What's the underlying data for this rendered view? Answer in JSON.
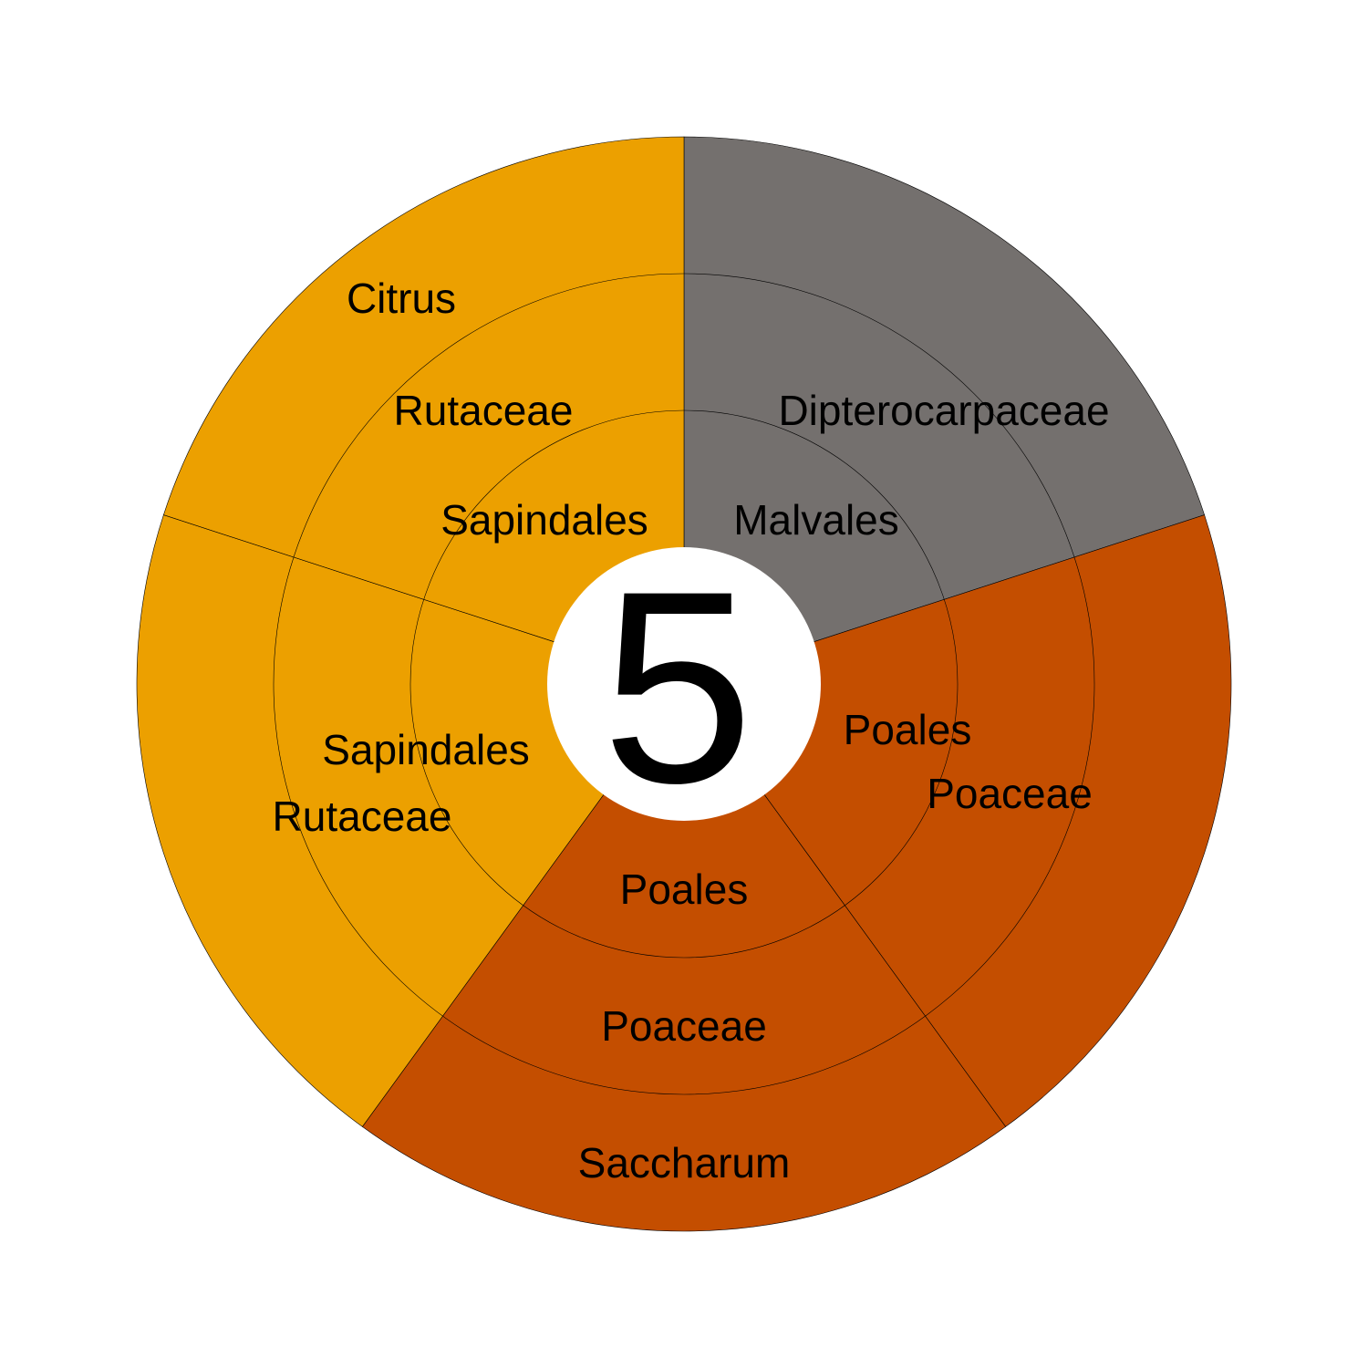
{
  "chart_data": {
    "type": "sunburst",
    "center_label": "5",
    "levels": [
      "order",
      "family",
      "genus"
    ],
    "segments": [
      {
        "order": "Malvales",
        "family": "Dipterocarpaceae",
        "genus": "",
        "value": 1,
        "color": "#74706e"
      },
      {
        "order": "Poales",
        "family": "Poaceae",
        "genus": "",
        "value": 1,
        "color": "#c44e00"
      },
      {
        "order": "Poales",
        "family": "Poaceae",
        "genus": "Saccharum",
        "value": 1,
        "color": "#c44e00"
      },
      {
        "order": "Sapindales",
        "family": "Rutaceae",
        "genus": "",
        "value": 1,
        "color": "#eca000"
      },
      {
        "order": "Sapindales",
        "family": "Rutaceae",
        "genus": "Citrus",
        "value": 1,
        "color": "#eca000"
      }
    ]
  }
}
